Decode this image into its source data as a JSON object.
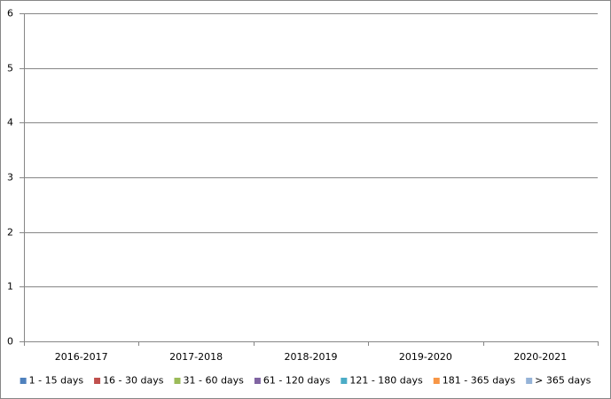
{
  "chart_data": {
    "type": "stacked_bar",
    "categories": [
      "2016-2017",
      "2017-2018",
      "2018-2019",
      "2019-2020",
      "2020-2021"
    ],
    "series": [
      {
        "name": "1 - 15 days",
        "color": "#4f81bd",
        "values": [
          0,
          0,
          0,
          0,
          0
        ]
      },
      {
        "name": "16 - 30 days",
        "color": "#c0504d",
        "values": [
          0,
          0,
          0,
          0,
          0
        ]
      },
      {
        "name": "31 - 60 days",
        "color": "#9bbb59",
        "values": [
          0,
          0,
          0,
          0,
          0
        ]
      },
      {
        "name": "61 - 120 days",
        "color": "#8064a2",
        "values": [
          0,
          0,
          0,
          0,
          0
        ]
      },
      {
        "name": "121 - 180 days",
        "color": "#4bacc6",
        "values": [
          0,
          0,
          0,
          0,
          0
        ]
      },
      {
        "name": "181 - 365 days",
        "color": "#f79646",
        "values": [
          0,
          0,
          0,
          0,
          0
        ]
      },
      {
        "name": "> 365 days",
        "color": "#95b3d7",
        "values": [
          0,
          0,
          0,
          0,
          0
        ]
      }
    ],
    "ylim": [
      0,
      6
    ],
    "yticks": [
      0,
      1,
      2,
      3,
      4,
      5,
      6
    ],
    "grid": true,
    "legend": "bottom"
  }
}
